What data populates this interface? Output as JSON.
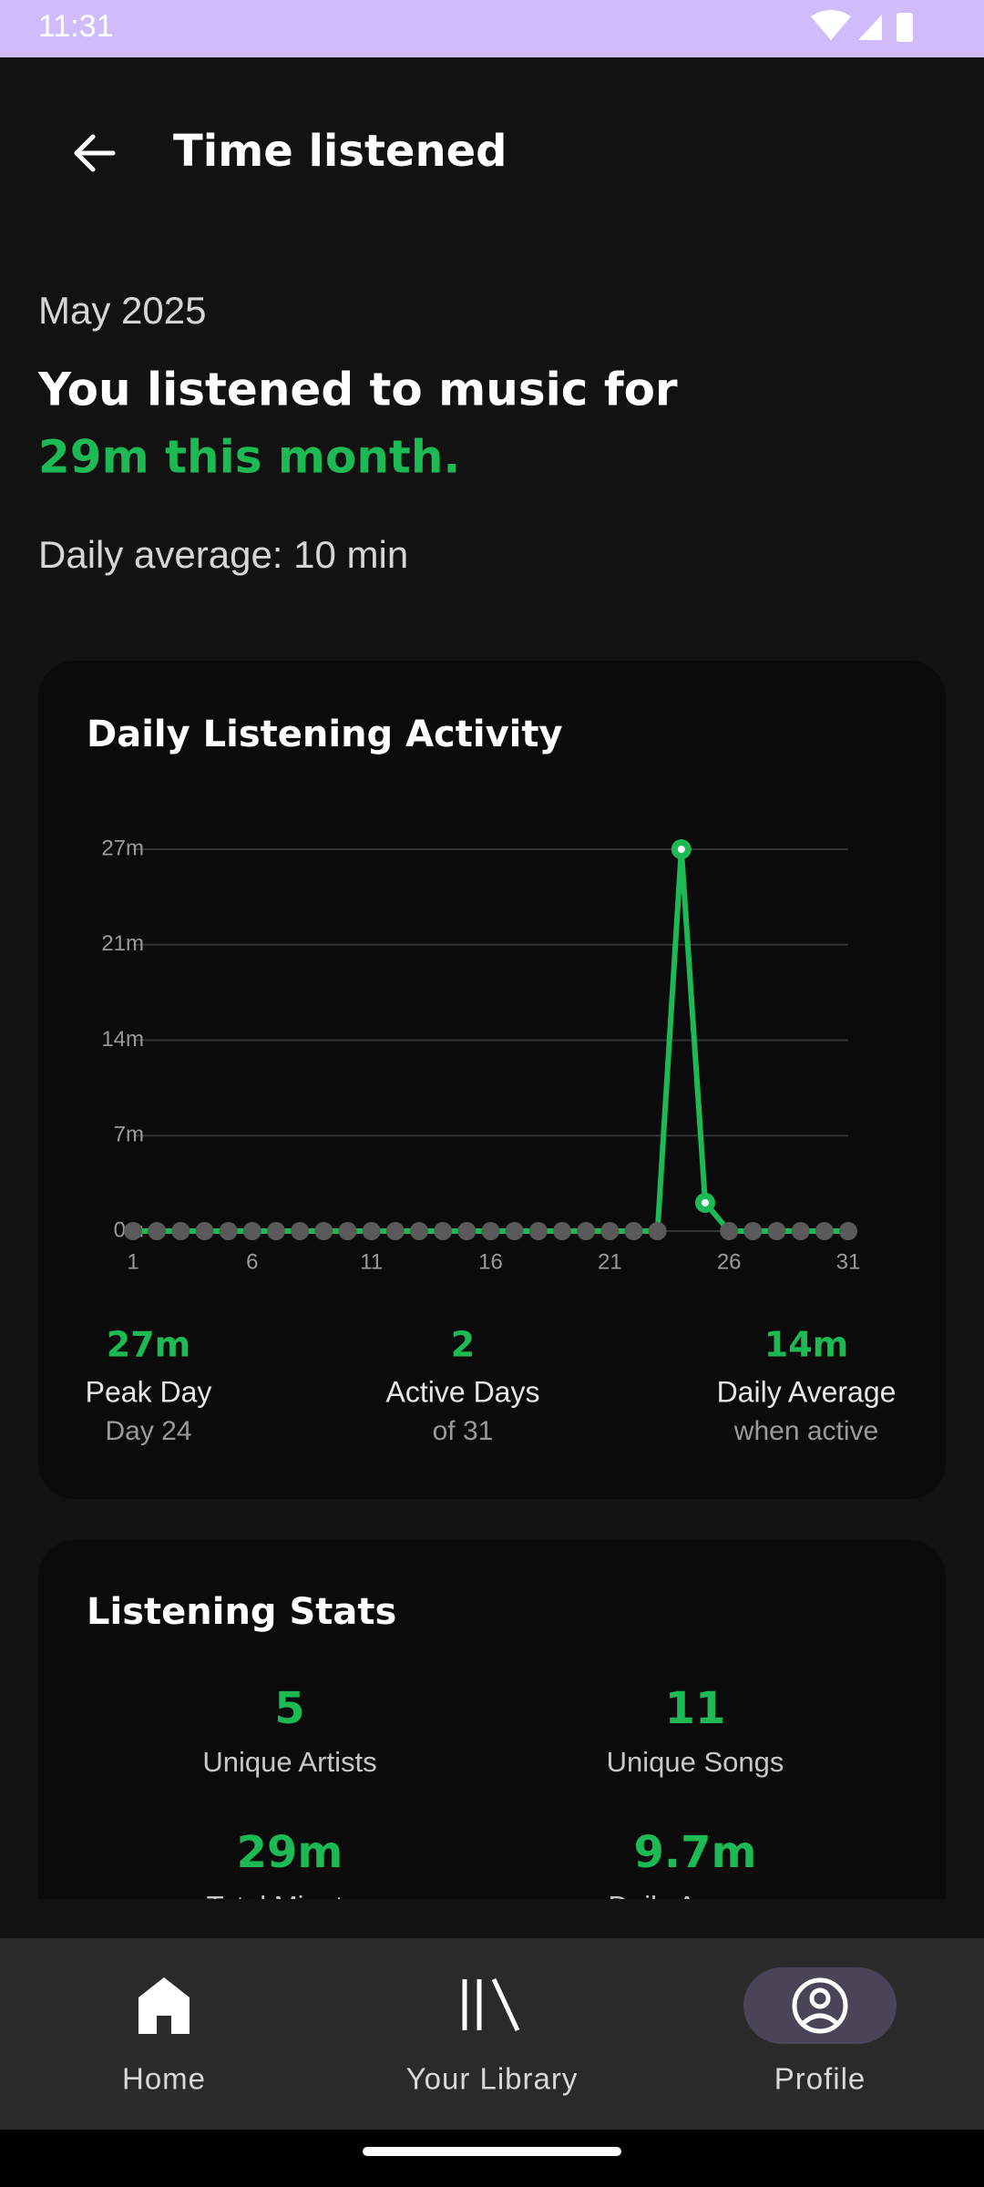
{
  "status_bar": {
    "time": "11:31"
  },
  "header": {
    "title": "Time listened"
  },
  "summary": {
    "month": "May 2025",
    "headline": "You listened to music for",
    "highlight": "29m this month.",
    "daily_average": "Daily average: 10 min"
  },
  "chart_data": {
    "type": "line",
    "title": "Daily Listening Activity",
    "x": [
      1,
      2,
      3,
      4,
      5,
      6,
      7,
      8,
      9,
      10,
      11,
      12,
      13,
      14,
      15,
      16,
      17,
      18,
      19,
      20,
      21,
      22,
      23,
      24,
      25,
      26,
      27,
      28,
      29,
      30,
      31
    ],
    "values": [
      0,
      0,
      0,
      0,
      0,
      0,
      0,
      0,
      0,
      0,
      0,
      0,
      0,
      0,
      0,
      0,
      0,
      0,
      0,
      0,
      0,
      0,
      0,
      27,
      2,
      0,
      0,
      0,
      0,
      0,
      0
    ],
    "color": "#1db954",
    "inactive_color": "#5a5a5a",
    "xlim": [
      1,
      31
    ],
    "xticks": [
      1,
      6,
      11,
      16,
      21,
      26,
      31
    ],
    "ylim": [
      0,
      27
    ],
    "yticks": [
      {
        "value": 0,
        "label": "0m"
      },
      {
        "value": 6.75,
        "label": "7m"
      },
      {
        "value": 13.5,
        "label": "14m"
      },
      {
        "value": 20.25,
        "label": "21m"
      },
      {
        "value": 27,
        "label": "27m"
      }
    ],
    "grid": true
  },
  "chart_stats": [
    {
      "value": "27m",
      "label": "Peak Day",
      "sub": "Day 24"
    },
    {
      "value": "2",
      "label": "Active Days",
      "sub": "of 31"
    },
    {
      "value": "14m",
      "label": "Daily Average",
      "sub": "when active"
    }
  ],
  "listening_stats": {
    "title": "Listening Stats",
    "items": [
      {
        "value": "5",
        "label": "Unique Artists"
      },
      {
        "value": "11",
        "label": "Unique Songs"
      },
      {
        "value": "29m",
        "label": "Total Minutes"
      },
      {
        "value": "9.7m",
        "label": "Daily Average"
      }
    ]
  },
  "nav": [
    {
      "label": "Home"
    },
    {
      "label": "Your Library"
    },
    {
      "label": "Profile"
    }
  ]
}
